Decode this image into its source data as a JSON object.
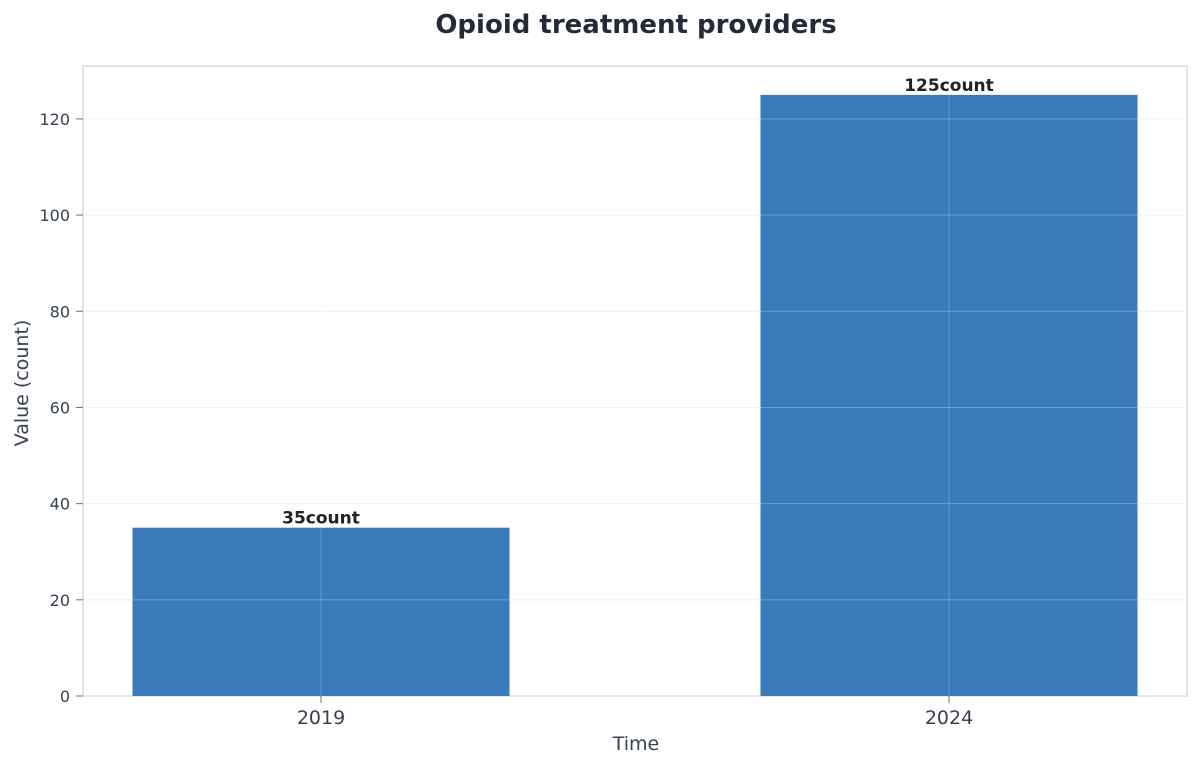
{
  "chart_data": {
    "type": "bar",
    "title": "Opioid treatment providers",
    "xlabel": "Time",
    "ylabel": "Value (count)",
    "categories": [
      "2019",
      "2024"
    ],
    "values": [
      35,
      125
    ],
    "data_labels": [
      "35count",
      "125count"
    ],
    "ylim": [
      0,
      131
    ],
    "yticks": [
      0,
      20,
      40,
      60,
      80,
      100,
      120
    ],
    "ytick_labels": [
      "0",
      "20",
      "40",
      "60",
      "80",
      "100",
      "120"
    ],
    "grid": true,
    "legend": "none",
    "colors": {
      "bar": "#3a7aba",
      "grid": "#e6ebf2",
      "frame": "#dfe3ea",
      "title": "#252a3a"
    }
  }
}
